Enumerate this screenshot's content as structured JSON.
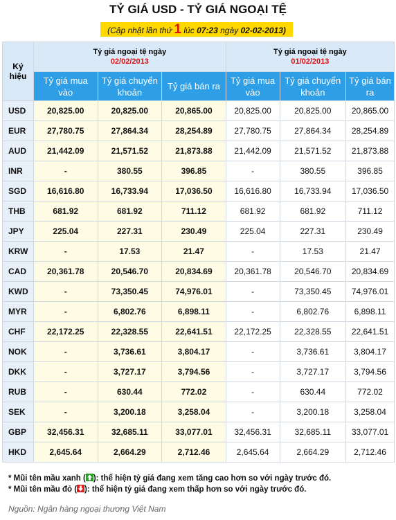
{
  "title": "TỶ GIÁ USD - TỶ GIÁ NGOẠI TỆ",
  "update": {
    "prefix": "(Cập nhật lần thứ",
    "count": "1",
    "at_label": "lúc",
    "time": "07:23",
    "date_label": "ngày",
    "date": "02-02-2013)"
  },
  "table": {
    "code_header": "Ký hiệu",
    "groups": [
      {
        "title": "Tỷ giá ngoại tệ ngày",
        "date": "02/02/2013",
        "columns": [
          "Tỷ giá mua vào",
          "Tỷ giá chuyển khoản",
          "Tỷ giá bán ra"
        ]
      },
      {
        "title": "Tỷ giá ngoại tệ ngày",
        "date": "01/02/2013",
        "columns": [
          "Tỷ giá mua vào",
          "Tỷ giá chuyển khoản",
          "Tỷ giá bán ra"
        ]
      }
    ],
    "rows": [
      [
        "USD",
        "20,825.00",
        "20,825.00",
        "20,865.00",
        "20,825.00",
        "20,825.00",
        "20,865.00"
      ],
      [
        "EUR",
        "27,780.75",
        "27,864.34",
        "28,254.89",
        "27,780.75",
        "27,864.34",
        "28,254.89"
      ],
      [
        "AUD",
        "21,442.09",
        "21,571.52",
        "21,873.88",
        "21,442.09",
        "21,571.52",
        "21,873.88"
      ],
      [
        "INR",
        "-",
        "380.55",
        "396.85",
        "-",
        "380.55",
        "396.85"
      ],
      [
        "SGD",
        "16,616.80",
        "16,733.94",
        "17,036.50",
        "16,616.80",
        "16,733.94",
        "17,036.50"
      ],
      [
        "THB",
        "681.92",
        "681.92",
        "711.12",
        "681.92",
        "681.92",
        "711.12"
      ],
      [
        "JPY",
        "225.04",
        "227.31",
        "230.49",
        "225.04",
        "227.31",
        "230.49"
      ],
      [
        "KRW",
        "-",
        "17.53",
        "21.47",
        "-",
        "17.53",
        "21.47"
      ],
      [
        "CAD",
        "20,361.78",
        "20,546.70",
        "20,834.69",
        "20,361.78",
        "20,546.70",
        "20,834.69"
      ],
      [
        "KWD",
        "-",
        "73,350.45",
        "74,976.01",
        "-",
        "73,350.45",
        "74,976.01"
      ],
      [
        "MYR",
        "-",
        "6,802.76",
        "6,898.11",
        "-",
        "6,802.76",
        "6,898.11"
      ],
      [
        "CHF",
        "22,172.25",
        "22,328.55",
        "22,641.51",
        "22,172.25",
        "22,328.55",
        "22,641.51"
      ],
      [
        "NOK",
        "-",
        "3,736.61",
        "3,804.17",
        "-",
        "3,736.61",
        "3,804.17"
      ],
      [
        "DKK",
        "-",
        "3,727.17",
        "3,794.56",
        "-",
        "3,727.17",
        "3,794.56"
      ],
      [
        "RUB",
        "-",
        "630.44",
        "772.02",
        "-",
        "630.44",
        "772.02"
      ],
      [
        "SEK",
        "-",
        "3,200.18",
        "3,258.04",
        "-",
        "3,200.18",
        "3,258.04"
      ],
      [
        "GBP",
        "32,456.31",
        "32,685.11",
        "33,077.01",
        "32,456.31",
        "32,685.11",
        "33,077.01"
      ],
      [
        "HKD",
        "2,645.64",
        "2,664.29",
        "2,712.46",
        "2,645.64",
        "2,664.29",
        "2,712.46"
      ]
    ]
  },
  "notes": [
    {
      "before": "* Mũi tên mầu xanh (",
      "after": "): thể hiện tỷ giá đang xem tăng cao hơn so với ngày trước đó."
    },
    {
      "before": "* Mũi tên mầu đỏ (",
      "after": "): thể hiện tỷ giá đang xem thấp hơn so với ngày trước đó."
    }
  ],
  "source": "Nguồn: Ngân hàng ngoại thương Việt Nam"
}
